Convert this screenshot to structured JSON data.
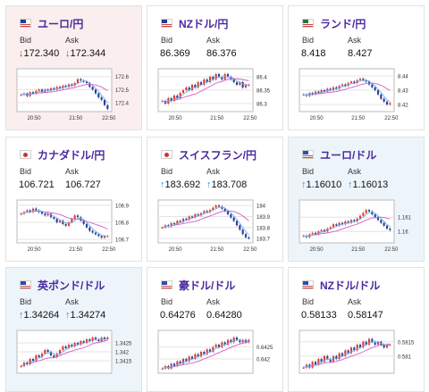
{
  "labels": {
    "bid": "Bid",
    "ask": "Ask"
  },
  "colors": {
    "title": "#4a2aa0",
    "up": "#3b8fd6",
    "down": "#d9322b",
    "candle_up": "#e03b2f",
    "candle_down": "#2a3f99",
    "ma_short": "#6db5e8",
    "ma_long": "#d459c7"
  },
  "cards": [
    {
      "pair": "ユーロ/円",
      "flag": "eu-flag-icon",
      "tone": "pink",
      "bid": "172.340",
      "ask": "172.344",
      "dir": "down",
      "arrow": "↓",
      "chart_data": {
        "type": "candlestick",
        "x_labels": [
          "20:50",
          "21:50",
          "22:50"
        ],
        "y_ticks": [
          "172.6",
          "172.5",
          "172.4"
        ],
        "ylim": [
          172.33,
          172.66
        ],
        "closes": [
          172.46,
          172.47,
          172.45,
          172.48,
          172.47,
          172.49,
          172.5,
          172.48,
          172.5,
          172.49,
          172.51,
          172.5,
          172.52,
          172.51,
          172.53,
          172.52,
          172.54,
          172.53,
          172.55,
          172.58,
          172.57,
          172.56,
          172.55,
          172.52,
          172.5,
          172.47,
          172.44,
          172.42,
          172.38,
          172.35
        ]
      }
    },
    {
      "pair": "NZドル/円",
      "flag": "nz-flag-icon",
      "tone": "white",
      "bid": "86.369",
      "ask": "86.376",
      "dir": "",
      "arrow": "",
      "chart_data": {
        "type": "candlestick",
        "x_labels": [
          "20:50",
          "21:50",
          "22:50"
        ],
        "y_ticks": [
          "86.4",
          "86.35",
          "86.3"
        ],
        "ylim": [
          86.27,
          86.43
        ],
        "closes": [
          86.31,
          86.3,
          86.32,
          86.31,
          86.33,
          86.32,
          86.34,
          86.35,
          86.36,
          86.35,
          86.37,
          86.36,
          86.38,
          86.37,
          86.39,
          86.38,
          86.4,
          86.39,
          86.41,
          86.4,
          86.39,
          86.41,
          86.4,
          86.39,
          86.38,
          86.37,
          86.38,
          86.36,
          86.37,
          86.37
        ]
      }
    },
    {
      "pair": "ランド/円",
      "flag": "za-flag-icon",
      "tone": "white",
      "bid": "8.418",
      "ask": "8.427",
      "dir": "",
      "arrow": "",
      "chart_data": {
        "type": "candlestick",
        "x_labels": [
          "20:50",
          "21:50",
          "22:50"
        ],
        "y_ticks": [
          "8.44",
          "8.43",
          "8.42"
        ],
        "ylim": [
          8.415,
          8.445
        ],
        "closes": [
          8.427,
          8.426,
          8.428,
          8.427,
          8.429,
          8.428,
          8.43,
          8.429,
          8.431,
          8.43,
          8.432,
          8.431,
          8.433,
          8.434,
          8.433,
          8.435,
          8.436,
          8.435,
          8.437,
          8.438,
          8.437,
          8.436,
          8.434,
          8.432,
          8.43,
          8.427,
          8.424,
          8.422,
          8.42,
          8.421
        ]
      }
    },
    {
      "pair": "カナダドル/円",
      "flag": "ca-flag-icon",
      "tone": "white",
      "bid": "106.721",
      "ask": "106.727",
      "dir": "",
      "arrow": "",
      "chart_data": {
        "type": "candlestick",
        "x_labels": [
          "20:50",
          "21:50",
          "22:50"
        ],
        "y_ticks": [
          "106.9",
          "106.8",
          "106.7"
        ],
        "ylim": [
          106.68,
          106.93
        ],
        "closes": [
          106.85,
          106.86,
          106.87,
          106.86,
          106.88,
          106.87,
          106.86,
          106.85,
          106.84,
          106.85,
          106.83,
          106.82,
          106.8,
          106.81,
          106.79,
          106.78,
          106.8,
          106.82,
          106.84,
          106.83,
          106.81,
          106.79,
          106.77,
          106.75,
          106.74,
          106.73,
          106.72,
          106.71,
          106.72,
          106.72
        ]
      }
    },
    {
      "pair": "スイスフラン/円",
      "flag": "ch-flag-icon",
      "tone": "white",
      "bid": "183.692",
      "ask": "183.708",
      "dir": "up",
      "arrow": "↑",
      "chart_data": {
        "type": "candlestick",
        "x_labels": [
          "20:50",
          "21:50",
          "22:50"
        ],
        "y_ticks": [
          "184",
          "183.9",
          "183.8",
          "183.7"
        ],
        "ylim": [
          183.66,
          184.05
        ],
        "closes": [
          183.8,
          183.82,
          183.81,
          183.84,
          183.83,
          183.86,
          183.85,
          183.88,
          183.87,
          183.9,
          183.89,
          183.92,
          183.91,
          183.93,
          183.95,
          183.94,
          183.96,
          183.98,
          184.0,
          183.99,
          183.97,
          183.95,
          183.92,
          183.89,
          183.86,
          183.82,
          183.78,
          183.74,
          183.71,
          183.7
        ]
      }
    },
    {
      "pair": "ユーロ/ドル",
      "flag": "eu-us-flag-icon",
      "tone": "blue",
      "bid": "1.16010",
      "ask": "1.16013",
      "dir": "up",
      "arrow": "↑",
      "chart_data": {
        "type": "candlestick",
        "x_labels": [
          "20:50",
          "21:50",
          "22:50"
        ],
        "y_ticks": [
          "1.161",
          "1.16"
        ],
        "ylim": [
          1.1592,
          1.1622
        ],
        "closes": [
          1.1597,
          1.1596,
          1.1598,
          1.1599,
          1.1598,
          1.16,
          1.1601,
          1.16,
          1.1602,
          1.1603,
          1.1605,
          1.1604,
          1.1606,
          1.1605,
          1.1607,
          1.1606,
          1.1608,
          1.1607,
          1.1609,
          1.1611,
          1.1613,
          1.1615,
          1.1614,
          1.1612,
          1.161,
          1.1608,
          1.1606,
          1.1604,
          1.1602,
          1.1601
        ]
      }
    },
    {
      "pair": "英ポンド/ドル",
      "flag": "gb-us-flag-icon",
      "tone": "blue",
      "bid": "1.34264",
      "ask": "1.34274",
      "dir": "up",
      "arrow": "↑",
      "chart_data": {
        "type": "candlestick",
        "x_labels": [],
        "y_ticks": [
          "1.3425",
          "1.342",
          "1.3415"
        ],
        "ylim": [
          1.3408,
          1.3432
        ],
        "closes": [
          1.3412,
          1.3414,
          1.3413,
          1.3416,
          1.3415,
          1.3418,
          1.3417,
          1.3419,
          1.3421,
          1.342,
          1.3418,
          1.3417,
          1.3419,
          1.3421,
          1.3423,
          1.3422,
          1.3424,
          1.3423,
          1.3425,
          1.3424,
          1.3426,
          1.3425,
          1.3427,
          1.3426,
          1.3428,
          1.3427,
          1.3426,
          1.3428,
          1.3427,
          1.3428
        ]
      }
    },
    {
      "pair": "豪ドル/ドル",
      "flag": "au-us-flag-icon",
      "tone": "white",
      "bid": "0.64276",
      "ask": "0.64280",
      "dir": "",
      "arrow": "",
      "chart_data": {
        "type": "candlestick",
        "x_labels": [],
        "y_ticks": [
          "0.6425",
          "0.642"
        ],
        "ylim": [
          0.6414,
          0.6432
        ],
        "closes": [
          0.6416,
          0.6417,
          0.6416,
          0.6418,
          0.6417,
          0.6419,
          0.6418,
          0.642,
          0.6419,
          0.6421,
          0.642,
          0.6422,
          0.6421,
          0.6423,
          0.6422,
          0.6424,
          0.6423,
          0.6425,
          0.6426,
          0.6425,
          0.6427,
          0.6426,
          0.6428,
          0.6427,
          0.6429,
          0.6428,
          0.6427,
          0.6428,
          0.6427,
          0.6428
        ]
      }
    },
    {
      "pair": "NZドル/ドル",
      "flag": "nz-us-flag-icon",
      "tone": "white",
      "bid": "0.58133",
      "ask": "0.58147",
      "dir": "",
      "arrow": "",
      "chart_data": {
        "type": "candlestick",
        "x_labels": [],
        "y_ticks": [
          "0.5815",
          "0.581"
        ],
        "ylim": [
          0.5804,
          0.5819
        ],
        "closes": [
          0.5806,
          0.5807,
          0.5806,
          0.5808,
          0.5807,
          0.5809,
          0.5808,
          0.581,
          0.5809,
          0.5808,
          0.581,
          0.5809,
          0.5811,
          0.581,
          0.5812,
          0.5811,
          0.5813,
          0.5812,
          0.5814,
          0.5813,
          0.5815,
          0.5814,
          0.5816,
          0.5815,
          0.5814,
          0.5815,
          0.5814,
          0.5813,
          0.5814,
          0.5814
        ]
      }
    }
  ]
}
